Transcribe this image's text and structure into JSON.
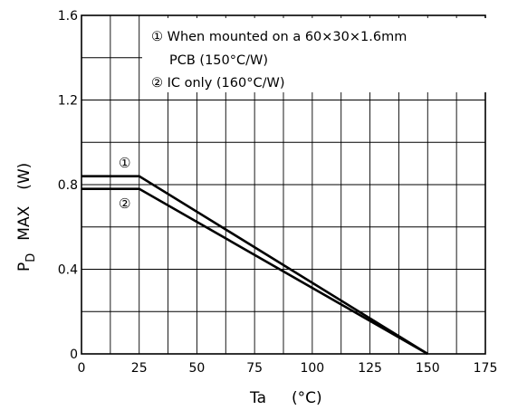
{
  "chart_data": {
    "type": "line",
    "xlabel": "Ta",
    "xlabel_unit": "(°C)",
    "ylabel": "MAX",
    "ylabel_symbol": "P",
    "ylabel_subscript": "D",
    "ylabel_unit": "(W)",
    "xlim": [
      0,
      175
    ],
    "ylim": [
      0,
      1.6
    ],
    "x_ticks": [
      0,
      25,
      50,
      75,
      100,
      125,
      150,
      175
    ],
    "y_ticks": [
      0,
      0.4,
      0.8,
      1.2,
      1.6
    ],
    "x_tick_labels": [
      "0",
      "25",
      "50",
      "75",
      "100",
      "125",
      "150",
      "175"
    ],
    "y_tick_labels": [
      "0",
      "0.4",
      "0.8",
      "1.2",
      "1.6"
    ],
    "grid": true,
    "minor_x_step": 12.5,
    "minor_y_step": 0.2,
    "series": [
      {
        "name": "①",
        "x": [
          0,
          25,
          150
        ],
        "y": [
          0.84,
          0.84,
          0
        ]
      },
      {
        "name": "②",
        "x": [
          0,
          25,
          150
        ],
        "y": [
          0.78,
          0.78,
          0
        ]
      }
    ],
    "legend": {
      "placement": "top-right",
      "entries": [
        "① When mounted on a 60×30×1.6mm",
        "PCB (150°C/W)",
        "② IC only (160°C/W)"
      ]
    },
    "series_markers": [
      "①",
      "②"
    ]
  }
}
